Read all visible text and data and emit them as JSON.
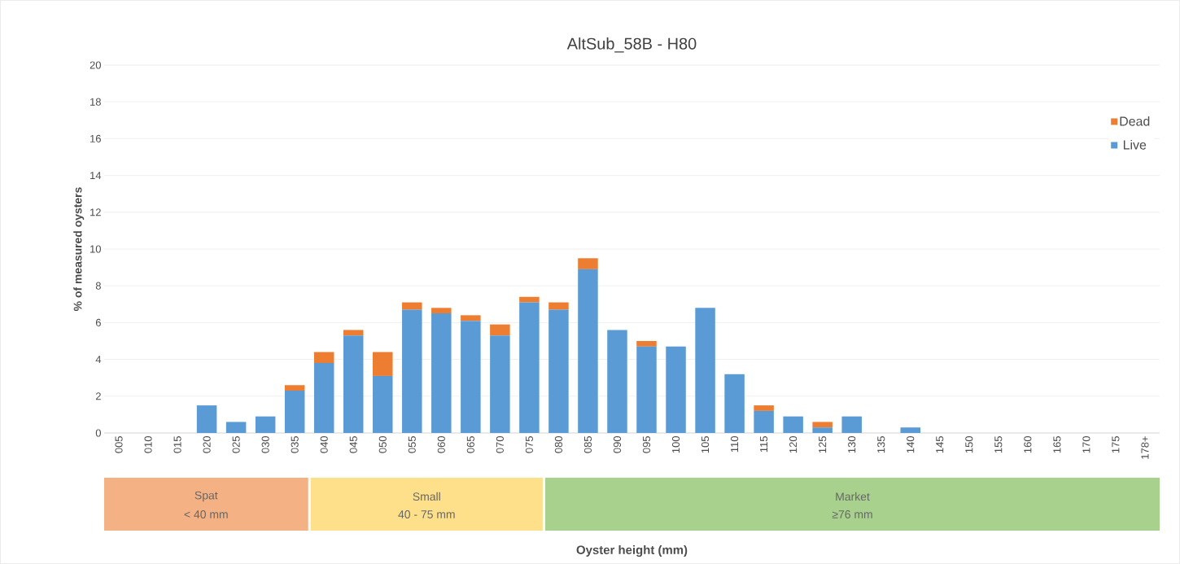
{
  "chart_data": {
    "type": "bar",
    "stacked": true,
    "title": "AltSub_58B  -  H80",
    "ylabel": "% of measured oysters",
    "categories": [
      "005",
      "010",
      "015",
      "020",
      "025",
      "030",
      "035",
      "040",
      "045",
      "050",
      "055",
      "060",
      "065",
      "070",
      "075",
      "080",
      "085",
      "090",
      "095",
      "100",
      "105",
      "110",
      "115",
      "120",
      "125",
      "130",
      "135",
      "140",
      "145",
      "150",
      "155",
      "160",
      "165",
      "170",
      "175",
      "178+"
    ],
    "series": [
      {
        "name": "Live",
        "color": "#5b9bd5",
        "values": [
          0,
          0,
          0,
          1.5,
          0.6,
          0.9,
          2.3,
          3.8,
          5.3,
          3.1,
          6.7,
          6.5,
          6.1,
          5.3,
          7.1,
          6.7,
          8.9,
          5.6,
          4.7,
          4.7,
          6.8,
          3.2,
          1.2,
          0.9,
          0.3,
          0.9,
          0,
          0.3,
          0,
          0,
          0,
          0,
          0,
          0,
          0,
          0
        ]
      },
      {
        "name": "Dead",
        "color": "#ed7d31",
        "values": [
          0,
          0,
          0,
          0,
          0,
          0,
          0.3,
          0.6,
          0.3,
          1.3,
          0.4,
          0.3,
          0.3,
          0.6,
          0.3,
          0.4,
          0.6,
          0,
          0.3,
          0,
          0,
          0,
          0.3,
          0,
          0.3,
          0,
          0,
          0,
          0,
          0,
          0,
          0,
          0,
          0,
          0,
          0
        ]
      }
    ],
    "ylim": [
      0,
      20
    ],
    "yticks": [
      0,
      2,
      4,
      6,
      8,
      10,
      12,
      14,
      16,
      18,
      20
    ],
    "grid": "y",
    "legend": "top right",
    "annotations": [
      "Spat",
      "< 40 mm",
      "Small",
      "40 - 75 mm",
      "Market",
      "≥76 mm",
      "Oyster height (mm)"
    ]
  }
}
